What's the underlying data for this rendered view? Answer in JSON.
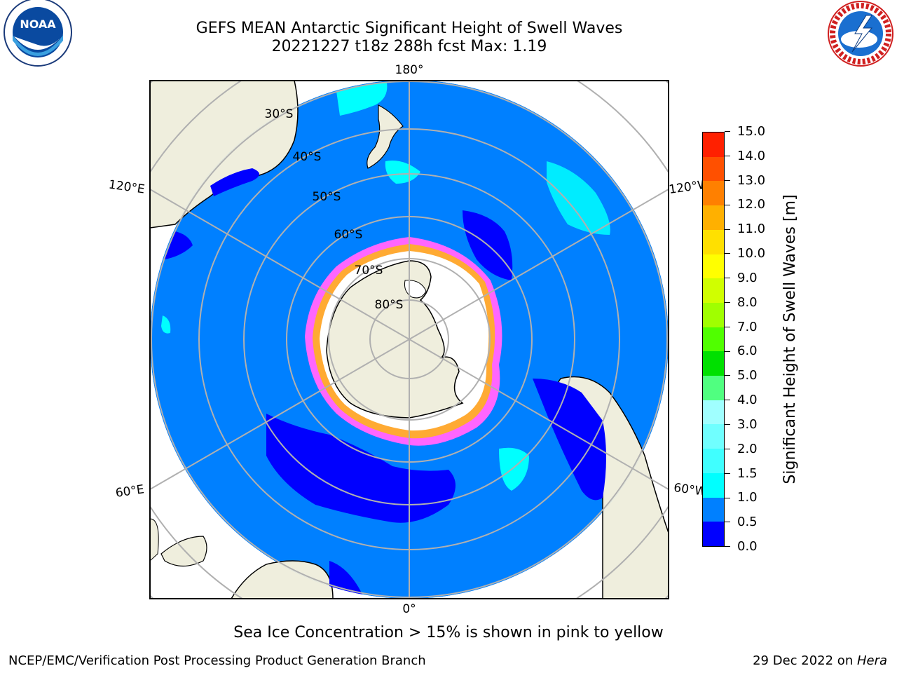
{
  "header": {
    "title_line1": "GEFS MEAN Antarctic Significant Height of Swell Waves",
    "title_line2": "20221227 t18z 288h fcst   Max: 1.19"
  },
  "logos": {
    "left": "noaa-logo",
    "right": "nws-logo"
  },
  "map": {
    "projection": "south-polar-stereographic",
    "longitude_labels": {
      "top": "180°",
      "bottom": "0°",
      "left_upper": "120°E",
      "left_lower": "60°E",
      "right_upper": "120°W",
      "right_lower": "60°W"
    },
    "latitude_labels": [
      "30°S",
      "40°S",
      "50°S",
      "60°S",
      "70°S",
      "80°S"
    ],
    "colors": {
      "ocean_low": "#0080ff",
      "ocean_lowest": "#0000ff",
      "swell_mid": "#00ffff",
      "land": "#efeedd",
      "ice": "#ffffff",
      "grid": "#b0b0b0"
    }
  },
  "colorbar": {
    "label": "Significant Height of Swell Waves [m]",
    "ticks": [
      "0.0",
      "0.5",
      "1.0",
      "1.5",
      "2.0",
      "3.0",
      "4.0",
      "5.0",
      "6.0",
      "7.0",
      "8.0",
      "9.0",
      "10.0",
      "11.0",
      "12.0",
      "13.0",
      "14.0",
      "15.0"
    ],
    "colors": [
      "#0000ff",
      "#0080ff",
      "#00ffff",
      "#40ffff",
      "#70ffff",
      "#a0ffff",
      "#50ff80",
      "#00e000",
      "#50ff00",
      "#a0ff00",
      "#d0ff00",
      "#ffff00",
      "#ffe000",
      "#ffb000",
      "#ff8000",
      "#ff5000",
      "#ff2000"
    ]
  },
  "note": "Sea Ice Concentration > 15% is shown in pink to yellow",
  "footer": {
    "left": "NCEP/EMC/Verification Post Processing Product Generation Branch",
    "right_prefix": "29 Dec 2022 on ",
    "right_host": "Hera"
  }
}
